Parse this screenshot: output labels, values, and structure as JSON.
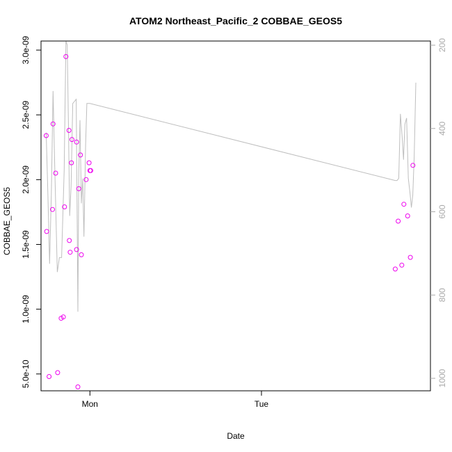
{
  "chart_data": {
    "type": "scatter",
    "title": "ATOM2 Northeast_Pacific_2 COBBAE_GEOS5",
    "xlabel": "Date",
    "ylabel": "COBBAE_GEOS5",
    "x_ticks": [
      {
        "value": 0,
        "label": "Mon"
      },
      {
        "value": 1,
        "label": "Tue"
      }
    ],
    "xlim": [
      -0.285,
      1.985
    ],
    "ylim": [
      3.7e-10,
      3.07e-09
    ],
    "y_ticks": [
      {
        "value": 5e-10,
        "label": "5.0e-10"
      },
      {
        "value": 1e-09,
        "label": "1.0e-09"
      },
      {
        "value": 1.5e-09,
        "label": "1.5e-09"
      },
      {
        "value": 2e-09,
        "label": "2.0e-09"
      },
      {
        "value": 2.5e-09,
        "label": "2.5e-09"
      },
      {
        "value": 3e-09,
        "label": "3.0e-09"
      }
    ],
    "y2lim": [
      1030,
      190
    ],
    "y2_ticks": [
      {
        "value": 200,
        "label": "200"
      },
      {
        "value": 400,
        "label": "400"
      },
      {
        "value": 600,
        "label": "600"
      },
      {
        "value": 800,
        "label": "800"
      },
      {
        "value": 1000,
        "label": "1000"
      }
    ],
    "grid": false,
    "colors": {
      "points": "#ee00ee",
      "line": "#bebebe",
      "right_axis": "#aaaaaa"
    },
    "series": [
      {
        "type": "scatter",
        "x": [
          -0.255,
          -0.252,
          -0.238,
          -0.218,
          -0.215,
          -0.2,
          -0.188,
          -0.168,
          -0.155,
          -0.148,
          -0.14,
          -0.122,
          -0.12,
          -0.115,
          -0.108,
          -0.105,
          -0.078,
          -0.078,
          -0.07,
          -0.065,
          -0.055,
          -0.05,
          -0.022,
          -0.005,
          0.0,
          0.005,
          1.78,
          1.797,
          1.818,
          1.83,
          1.852,
          1.868,
          1.883
        ],
        "y": [
          2.34e-09,
          1.6e-09,
          4.8e-10,
          1.77e-09,
          2.43e-09,
          2.05e-09,
          5.1e-10,
          9.3e-10,
          9.4e-10,
          1.79e-09,
          2.95e-09,
          2.38e-09,
          1.53e-09,
          1.44e-09,
          2.13e-09,
          2.31e-09,
          1.46e-09,
          2.29e-09,
          4e-10,
          1.93e-09,
          2.19e-09,
          1.42e-09,
          2e-09,
          2.13e-09,
          2.07e-09,
          2.07e-09,
          1.31e-09,
          1.68e-09,
          1.34e-09,
          1.81e-09,
          1.72e-09,
          1.4e-09,
          2.11e-09
        ]
      },
      {
        "type": "line",
        "axis": "right",
        "x": [
          -0.255,
          -0.245,
          -0.235,
          -0.225,
          -0.215,
          -0.205,
          -0.19,
          -0.178,
          -0.165,
          -0.15,
          -0.14,
          -0.132,
          -0.125,
          -0.118,
          -0.11,
          -0.1,
          -0.09,
          -0.08,
          -0.07,
          -0.065,
          -0.058,
          -0.05,
          -0.042,
          -0.035,
          -0.025,
          -0.018,
          -0.012,
          0.0,
          1.78,
          1.79,
          1.8,
          1.81,
          1.82,
          1.828,
          1.836,
          1.846,
          1.856,
          1.866,
          1.874,
          1.882,
          1.89,
          1.9
        ],
        "y": [
          410,
          560,
          725,
          560,
          310,
          490,
          745,
          710,
          710,
          500,
          190,
          200,
          400,
          610,
          540,
          340,
          335,
          330,
          840,
          500,
          380,
          580,
          520,
          660,
          440,
          340,
          340,
          340,
          525,
          525,
          520,
          365,
          420,
          475,
          390,
          375,
          520,
          555,
          590,
          560,
          470,
          290
        ]
      }
    ]
  }
}
